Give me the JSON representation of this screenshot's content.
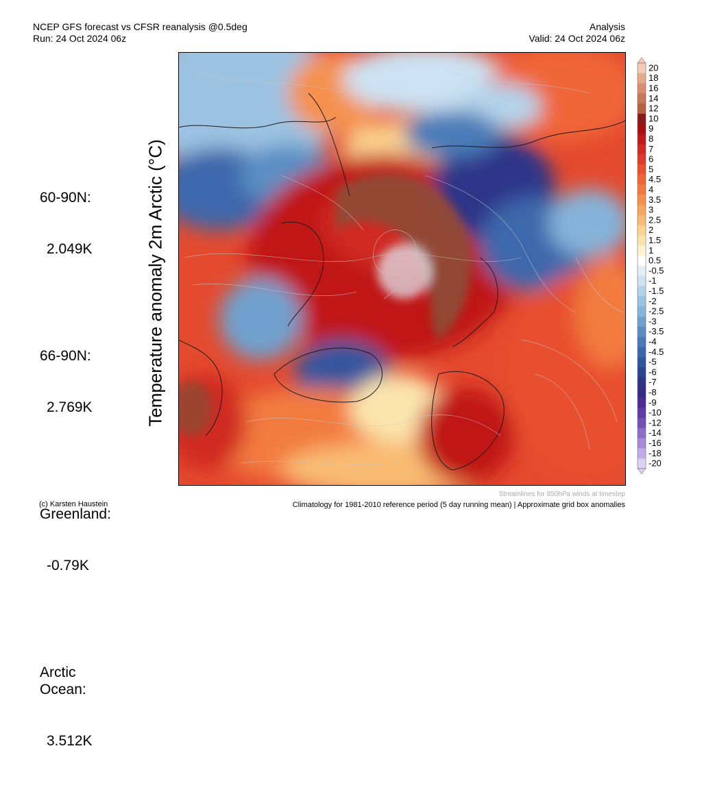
{
  "header": {
    "title_line1": "NCEP GFS forecast vs CFSR reanalysis @0.5deg",
    "title_line2": "Run: 24 Oct 2024 06z",
    "right_line1": "Analysis",
    "right_line2": "Valid: 24 Oct 2024 06z"
  },
  "side_title": "Temperature anomaly 2m Arctic (°C)",
  "stats": [
    {
      "label": "60-90N:",
      "value": "2.049K"
    },
    {
      "label": "66-90N:",
      "value": "2.769K"
    },
    {
      "label": "Greenland:",
      "value": "-0.79K"
    },
    {
      "label": "Arctic\nOcean:",
      "value": "3.512K"
    }
  ],
  "colorbar": {
    "labels": [
      "20",
      "18",
      "16",
      "14",
      "12",
      "10",
      "9",
      "8",
      "7",
      "6",
      "5",
      "4.5",
      "4",
      "3.5",
      "3",
      "2.5",
      "2",
      "1.5",
      "1",
      "0.5",
      "-0.5",
      "-1",
      "-1.5",
      "-2",
      "-2.5",
      "-3",
      "-3.5",
      "-4",
      "-4.5",
      "-5",
      "-6",
      "-7",
      "-8",
      "-9",
      "-10",
      "-12",
      "-14",
      "-16",
      "-18",
      "-20"
    ],
    "colors": [
      "#f6cbb7",
      "#e6a98d",
      "#d88e70",
      "#c77656",
      "#b5603f",
      "#8b1a1a",
      "#a80f12",
      "#c01818",
      "#d02a22",
      "#df3b2a",
      "#e8502e",
      "#ef6637",
      "#f27b41",
      "#f5914e",
      "#f7a65d",
      "#f9bb72",
      "#fbd28e",
      "#fce5ad",
      "#fdf4d4",
      "#ffffff",
      "#e2eef8",
      "#cce2f2",
      "#b3d3ea",
      "#9cc3e2",
      "#85b3d9",
      "#6fa1ce",
      "#5a8ec3",
      "#4a7bb8",
      "#3c68ab",
      "#30569e",
      "#2a4592",
      "#2e3688",
      "#3b2a85",
      "#4b2c93",
      "#5e3ca6",
      "#7352b8",
      "#8b6dca",
      "#a68ad9",
      "#c2abe7",
      "#ddd0f3"
    ]
  },
  "footer": {
    "credit": "(c) Karsten Haustein",
    "streamlines_note": "Streamlines for 850hPa winds at timestep",
    "climatology": "Climatology for 1981-2010 reference period (5 day running mean) | Approximate grid box anomalies"
  }
}
